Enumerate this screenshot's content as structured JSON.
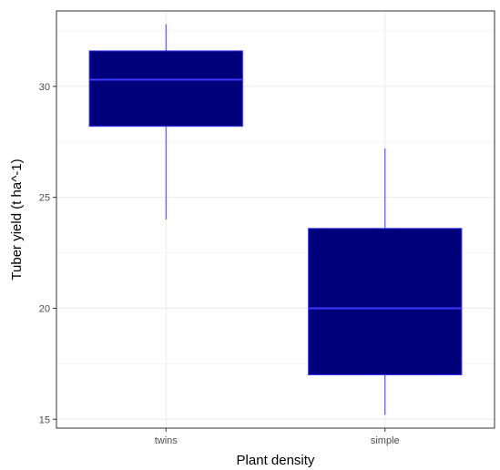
{
  "chart_data": {
    "type": "box",
    "title": "",
    "xlabel": "Plant density",
    "ylabel": "Tuber yield (t ha^-1)",
    "categories": [
      "twins",
      "simple"
    ],
    "boxes": [
      {
        "category": "twins",
        "whisker_low": 24.0,
        "q1": 28.2,
        "median": 30.3,
        "q3": 31.6,
        "whisker_high": 32.8
      },
      {
        "category": "simple",
        "whisker_low": 15.2,
        "q1": 17.0,
        "median": 20.0,
        "q3": 23.6,
        "whisker_high": 27.2
      }
    ],
    "y_ticks": [
      15,
      20,
      25,
      30
    ],
    "y_tick_labels": [
      "15",
      "20",
      "25",
      "30"
    ],
    "ylim": [
      14.6,
      33.4
    ],
    "grid": true,
    "legend": "none",
    "colors": {
      "box_fill": "#00007a",
      "box_line": "#3a3aff",
      "grid_major": "#ebebeb",
      "grid_minor": "#f5f5f5",
      "panel_border": "#333333",
      "axis_text": "#4d4d4d"
    }
  }
}
